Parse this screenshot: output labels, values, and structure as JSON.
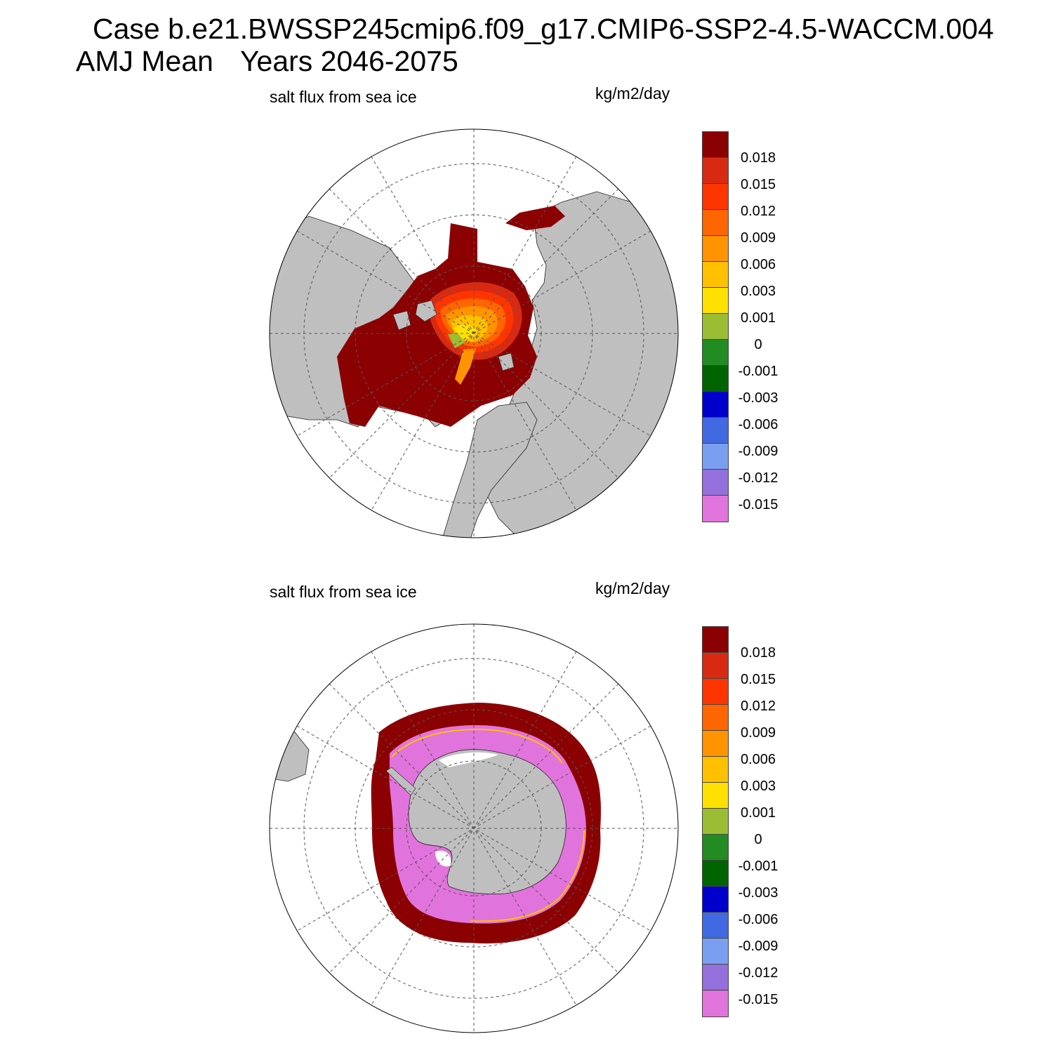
{
  "title": {
    "case_line": "Case b.e21.BWSSP245cmip6.f09_g17.CMIP6-SSP2-4.5-WACCM.004",
    "season": "AMJ Mean",
    "years": "Years 2046-2075"
  },
  "panels": [
    {
      "hemisphere": "north",
      "variable": "salt flux from sea ice",
      "units": "kg/m2/day"
    },
    {
      "hemisphere": "south",
      "variable": "salt flux from sea ice",
      "units": "kg/m2/day"
    }
  ],
  "colorbar": {
    "labels": [
      "0.018",
      "0.015",
      "0.012",
      "0.009",
      "0.006",
      "0.003",
      "0.001",
      "0",
      "-0.001",
      "-0.003",
      "-0.006",
      "-0.009",
      "-0.012",
      "-0.015"
    ],
    "colors": [
      "#8b0000",
      "#d82a13",
      "#ff3500",
      "#ff6500",
      "#ff9400",
      "#ffc000",
      "#ffe100",
      "#9bbd33",
      "#228b22",
      "#006400",
      "#0000cd",
      "#4169e1",
      "#7b9ff0",
      "#9370db",
      "#e173dc"
    ]
  },
  "map_colors": {
    "land": "#bfbfbf",
    "ocean": "#ffffff",
    "grid": "#555555"
  }
}
